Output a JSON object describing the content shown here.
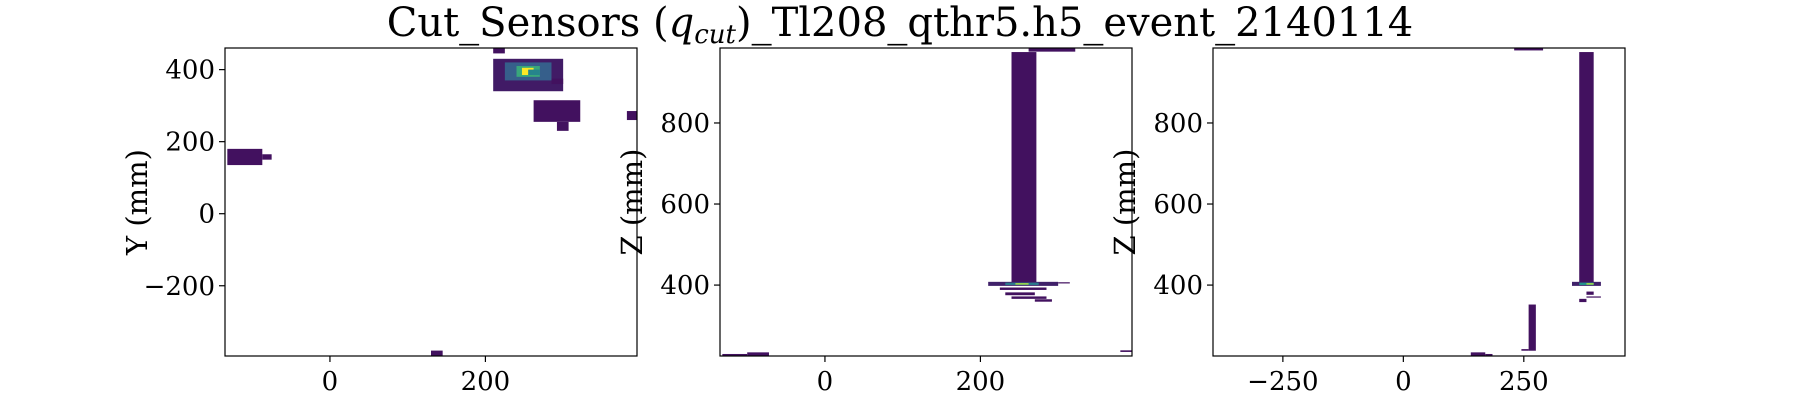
{
  "title_prefix": "Cut_Sensors (",
  "title_math_q": "q",
  "title_math_sub": "cut",
  "title_suffix": ")_Tl208_qthr5.h5_event_2140114",
  "colors": {
    "background": "#ffffff",
    "frame": "#000000",
    "colormap": "viridis"
  },
  "chart_data": [
    {
      "type": "heatmap",
      "xlabel": "",
      "ylabel": "Y (mm)",
      "xlim": [
        -135,
        395
      ],
      "ylim": [
        -395,
        460
      ],
      "xticks": [
        0,
        200
      ],
      "yticks": [
        400,
        200,
        0,
        -200
      ],
      "cells": [
        {
          "x0": -132,
          "x1": -87,
          "y0": 135,
          "y1": 180,
          "v": 0.05
        },
        {
          "x0": -87,
          "x1": -75,
          "y0": 150,
          "y1": 165,
          "v": 0.05
        },
        {
          "x0": 210,
          "x1": 225,
          "y0": 445,
          "y1": 460,
          "v": 0.05
        },
        {
          "x0": 210,
          "x1": 300,
          "y0": 340,
          "y1": 430,
          "v": 0.08
        },
        {
          "x0": 225,
          "x1": 285,
          "y0": 370,
          "y1": 420,
          "v": 0.3
        },
        {
          "x0": 240,
          "x1": 270,
          "y0": 380,
          "y1": 410,
          "v": 0.6
        },
        {
          "x0": 247,
          "x1": 262,
          "y0": 385,
          "y1": 405,
          "v": 1.0
        },
        {
          "x0": 255,
          "x1": 270,
          "y0": 385,
          "y1": 400,
          "v": 0.45
        },
        {
          "x0": 285,
          "x1": 300,
          "y0": 360,
          "y1": 375,
          "v": 0.05
        },
        {
          "x0": 262,
          "x1": 322,
          "y0": 255,
          "y1": 315,
          "v": 0.05
        },
        {
          "x0": 292,
          "x1": 307,
          "y0": 230,
          "y1": 255,
          "v": 0.05
        },
        {
          "x0": 382,
          "x1": 397,
          "y0": 260,
          "y1": 285,
          "v": 0.05
        },
        {
          "x0": 130,
          "x1": 145,
          "y0": -395,
          "y1": -380,
          "v": 0.05
        }
      ]
    },
    {
      "type": "heatmap",
      "xlabel": "",
      "ylabel": "Z (mm)",
      "xlim": [
        -135,
        395
      ],
      "ylim": [
        225,
        985
      ],
      "xticks": [
        0,
        200
      ],
      "yticks": [
        800,
        600,
        400
      ],
      "cells": [
        {
          "x0": -132,
          "x1": -100,
          "y0": 226,
          "y1": 230,
          "v": 0.05
        },
        {
          "x0": -100,
          "x1": -72,
          "y0": 226,
          "y1": 234,
          "v": 0.05
        },
        {
          "x0": 240,
          "x1": 272,
          "y0": 405,
          "y1": 975,
          "v": 0.05
        },
        {
          "x0": 262,
          "x1": 322,
          "y0": 976,
          "y1": 984,
          "v": 0.05
        },
        {
          "x0": 210,
          "x1": 300,
          "y0": 398,
          "y1": 408,
          "v": 0.1
        },
        {
          "x0": 232,
          "x1": 275,
          "y0": 400,
          "y1": 406,
          "v": 0.4
        },
        {
          "x0": 245,
          "x1": 262,
          "y0": 401,
          "y1": 405,
          "v": 0.85
        },
        {
          "x0": 300,
          "x1": 315,
          "y0": 404,
          "y1": 407,
          "v": 0.05
        },
        {
          "x0": 225,
          "x1": 285,
          "y0": 388,
          "y1": 394,
          "v": 0.05
        },
        {
          "x0": 232,
          "x1": 270,
          "y0": 375,
          "y1": 382,
          "v": 0.05
        },
        {
          "x0": 240,
          "x1": 285,
          "y0": 366,
          "y1": 372,
          "v": 0.05
        },
        {
          "x0": 270,
          "x1": 292,
          "y0": 359,
          "y1": 365,
          "v": 0.05
        },
        {
          "x0": 380,
          "x1": 397,
          "y0": 235,
          "y1": 239,
          "v": 0.05
        }
      ]
    },
    {
      "type": "heatmap",
      "xlabel": "",
      "ylabel": "Z (mm)",
      "xlim": [
        -395,
        460
      ],
      "ylim": [
        225,
        985
      ],
      "xticks": [
        -250,
        0,
        250
      ],
      "yticks": [
        800,
        600,
        400
      ],
      "cells": [
        {
          "x0": 230,
          "x1": 290,
          "y0": 979,
          "y1": 985,
          "v": 0.05
        },
        {
          "x0": 365,
          "x1": 395,
          "y0": 405,
          "y1": 975,
          "v": 0.05
        },
        {
          "x0": 350,
          "x1": 410,
          "y0": 398,
          "y1": 408,
          "v": 0.1
        },
        {
          "x0": 365,
          "x1": 395,
          "y0": 400,
          "y1": 406,
          "v": 0.5
        },
        {
          "x0": 380,
          "x1": 395,
          "y0": 401,
          "y1": 405,
          "v": 0.85
        },
        {
          "x0": 380,
          "x1": 395,
          "y0": 376,
          "y1": 384,
          "v": 0.05
        },
        {
          "x0": 380,
          "x1": 410,
          "y0": 369,
          "y1": 372,
          "v": 0.05
        },
        {
          "x0": 365,
          "x1": 380,
          "y0": 358,
          "y1": 366,
          "v": 0.05
        },
        {
          "x0": 260,
          "x1": 275,
          "y0": 238,
          "y1": 352,
          "v": 0.05
        },
        {
          "x0": 245,
          "x1": 260,
          "y0": 238,
          "y1": 242,
          "v": 0.05
        },
        {
          "x0": 140,
          "x1": 170,
          "y0": 226,
          "y1": 234,
          "v": 0.05
        },
        {
          "x0": 170,
          "x1": 185,
          "y0": 226,
          "y1": 230,
          "v": 0.05
        }
      ]
    }
  ]
}
